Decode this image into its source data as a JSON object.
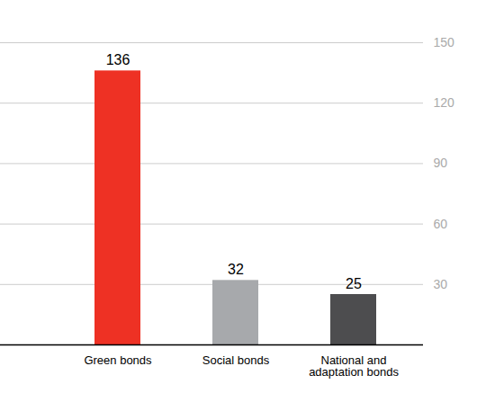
{
  "chart_data": {
    "type": "bar",
    "categories": [
      "Green bonds",
      "Social bonds",
      "National and adaptation bonds"
    ],
    "values": [
      136,
      32,
      25
    ],
    "colors": [
      "#ee3124",
      "#a7a9ac",
      "#4d4d4f"
    ],
    "ylim": [
      0,
      150
    ],
    "yticks": [
      30,
      60,
      90,
      120,
      150
    ],
    "grid": true,
    "data_labels": true
  }
}
